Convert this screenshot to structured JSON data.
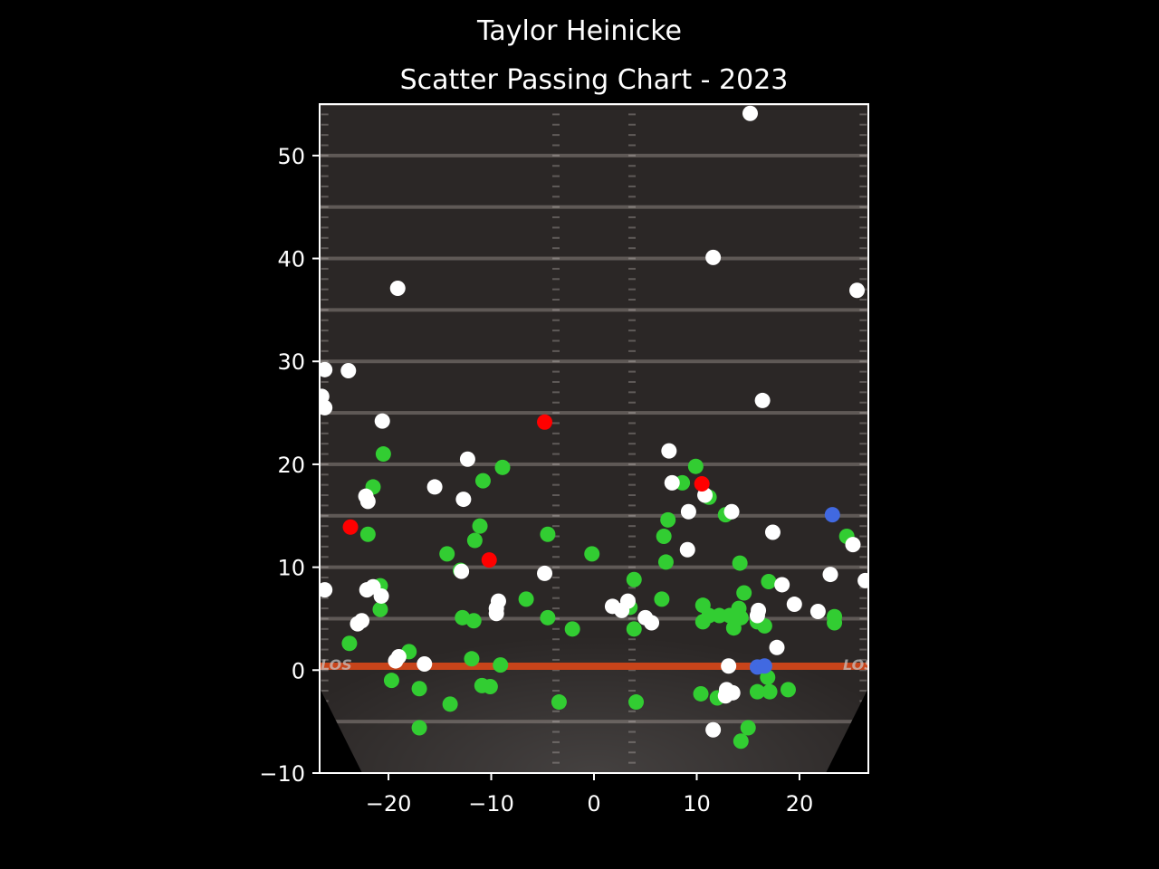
{
  "chart_data": {
    "type": "scatter",
    "title": "Taylor Heinicke",
    "subtitle": "Scatter Passing Chart - 2023",
    "xlabel": "",
    "ylabel": "",
    "xlim": [
      -26.7,
      26.7
    ],
    "ylim": [
      -10,
      55
    ],
    "xticks": [
      -20,
      -10,
      0,
      10,
      20
    ],
    "yticks": [
      -10,
      0,
      10,
      20,
      30,
      40,
      50
    ],
    "xtick_labels": [
      "−20",
      "−10",
      "0",
      "10",
      "20"
    ],
    "ytick_labels": [
      "−10",
      "0",
      "10",
      "20",
      "30",
      "40",
      "50"
    ],
    "grid": false,
    "background": "football field",
    "field_label": "LOS",
    "colors": {
      "complete": "#32cd32",
      "incomplete": "#ffffff",
      "interception": "#ff0000",
      "touchdown": "#4169e1",
      "los_line": "#c8441a",
      "axes": "#ffffff",
      "page_bg": "#000000"
    },
    "series": [
      {
        "key": "complete",
        "points": [
          [
            -20.5,
            21
          ],
          [
            -21.5,
            17.8
          ],
          [
            -22,
            13.2
          ],
          [
            -20.8,
            8.2
          ],
          [
            -20.8,
            5.9
          ],
          [
            -23.8,
            2.6
          ],
          [
            -18,
            1.8
          ],
          [
            -19.7,
            -1
          ],
          [
            -17,
            -1.8
          ],
          [
            -17,
            -5.6
          ],
          [
            -14,
            -3.3
          ],
          [
            -14.3,
            11.3
          ],
          [
            -13,
            9.7
          ],
          [
            -12.8,
            5.1
          ],
          [
            -11.7,
            4.8
          ],
          [
            -11.9,
            1.1
          ],
          [
            -10.9,
            -1.5
          ],
          [
            -10.1,
            -1.6
          ],
          [
            -9.1,
            0.5
          ],
          [
            -11.6,
            12.6
          ],
          [
            -11.1,
            14
          ],
          [
            -10.8,
            18.4
          ],
          [
            -8.9,
            19.7
          ],
          [
            -4.5,
            13.2
          ],
          [
            -4.5,
            5.1
          ],
          [
            -6.6,
            6.9
          ],
          [
            -3.4,
            -3.1
          ],
          [
            -2.1,
            4
          ],
          [
            -0.2,
            11.3
          ],
          [
            3.9,
            8.8
          ],
          [
            3.5,
            6.1
          ],
          [
            3.9,
            4
          ],
          [
            4.1,
            -3.1
          ],
          [
            6.6,
            6.9
          ],
          [
            6.8,
            13
          ],
          [
            7.2,
            14.6
          ],
          [
            7,
            10.5
          ],
          [
            8.6,
            18.2
          ],
          [
            9.9,
            19.8
          ],
          [
            11.2,
            16.8
          ],
          [
            10.6,
            6.3
          ],
          [
            11.2,
            5.3
          ],
          [
            10.6,
            4.7
          ],
          [
            12.8,
            15.1
          ],
          [
            12.2,
            5.3
          ],
          [
            13.2,
            5.3
          ],
          [
            13.6,
            4.1
          ],
          [
            14.1,
            6
          ],
          [
            14.2,
            10.4
          ],
          [
            14.3,
            5.1
          ],
          [
            14.6,
            7.5
          ],
          [
            15.9,
            4.7
          ],
          [
            16.6,
            4.3
          ],
          [
            17,
            8.6
          ],
          [
            16.9,
            -0.7
          ],
          [
            17.1,
            -2.1
          ],
          [
            15.9,
            -2.1
          ],
          [
            18.9,
            -1.9
          ],
          [
            10.4,
            -2.3
          ],
          [
            12,
            -2.7
          ],
          [
            15,
            -5.6
          ],
          [
            14.3,
            -6.9
          ],
          [
            23.4,
            5.2
          ],
          [
            23.4,
            4.6
          ],
          [
            24.6,
            13
          ]
        ]
      },
      {
        "key": "incomplete",
        "points": [
          [
            -26.2,
            29.2
          ],
          [
            -23.9,
            29.1
          ],
          [
            -26.5,
            26.6
          ],
          [
            -26.2,
            25.5
          ],
          [
            -20.6,
            24.2
          ],
          [
            -19.1,
            37.1
          ],
          [
            -22.2,
            16.9
          ],
          [
            -22,
            16.4
          ],
          [
            -26.2,
            7.8
          ],
          [
            -22.1,
            7.8
          ],
          [
            -21.5,
            8.1
          ],
          [
            -20.7,
            7.2
          ],
          [
            -22.6,
            4.8
          ],
          [
            -23,
            4.5
          ],
          [
            -19.3,
            0.9
          ],
          [
            -19,
            1.3
          ],
          [
            -16.5,
            0.6
          ],
          [
            -15.5,
            17.8
          ],
          [
            -12.3,
            20.5
          ],
          [
            -12.7,
            16.6
          ],
          [
            -12.9,
            9.6
          ],
          [
            -9.3,
            6.7
          ],
          [
            -9.5,
            6
          ],
          [
            -9.5,
            5.5
          ],
          [
            -4.8,
            9.4
          ],
          [
            1.8,
            6.2
          ],
          [
            2.7,
            5.8
          ],
          [
            3.3,
            6.7
          ],
          [
            5,
            5.1
          ],
          [
            5.6,
            4.6
          ],
          [
            7.3,
            21.3
          ],
          [
            7.6,
            18.2
          ],
          [
            9.2,
            15.4
          ],
          [
            9.1,
            11.7
          ],
          [
            10.8,
            17
          ],
          [
            13.4,
            15.4
          ],
          [
            11.6,
            40.1
          ],
          [
            15.2,
            54.1
          ],
          [
            16.4,
            26.2
          ],
          [
            17.4,
            13.4
          ],
          [
            15.9,
            5.3
          ],
          [
            16,
            5.8
          ],
          [
            18.3,
            8.3
          ],
          [
            17.8,
            2.2
          ],
          [
            19.5,
            6.4
          ],
          [
            21.8,
            5.7
          ],
          [
            23,
            9.3
          ],
          [
            25.2,
            12.2
          ],
          [
            25.6,
            36.9
          ],
          [
            26.4,
            8.7
          ],
          [
            13.1,
            0.4
          ],
          [
            12.9,
            -1.9
          ],
          [
            13.5,
            -2.2
          ],
          [
            12.8,
            -2.5
          ],
          [
            11.6,
            -5.8
          ]
        ]
      },
      {
        "key": "interception",
        "points": [
          [
            -23.7,
            13.9
          ],
          [
            -10.2,
            10.7
          ],
          [
            -4.8,
            24.1
          ],
          [
            10.5,
            18.1
          ]
        ]
      },
      {
        "key": "touchdown",
        "points": [
          [
            23.2,
            15.1
          ],
          [
            15.9,
            0.3
          ],
          [
            16.6,
            0.4
          ]
        ]
      }
    ]
  }
}
